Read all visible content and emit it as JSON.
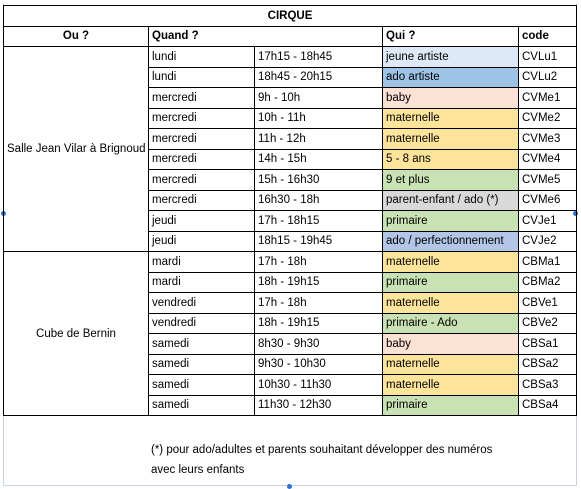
{
  "title": "CIRQUE",
  "headers": {
    "where": "Ou ?",
    "when": "Quand ?",
    "who": "Qui ?",
    "code": "code"
  },
  "colors": {
    "jeune_artiste": "#dde9f6",
    "ado_artiste": "#9dc3e6",
    "baby": "#fbe2d5",
    "maternelle": "#fde49b",
    "enfants": "#c9e2b3",
    "parent_enfant": "#d9d9d9",
    "ado_perf": "#b4c6e7"
  },
  "groups": [
    {
      "place": "Salle Jean Vilar à Brignoud",
      "rows": [
        {
          "day": "lundi",
          "time": "17h15 - 18h45",
          "who": "jeune artiste",
          "code": "CVLu1",
          "color": "#dde9f6"
        },
        {
          "day": "lundi",
          "time": "18h45 - 20h15",
          "who": "ado artiste",
          "code": "CVLu2",
          "color": "#9dc3e6"
        },
        {
          "day": "mercredi",
          "time": "9h - 10h",
          "who": "baby",
          "code": "CVMe1",
          "color": "#fbe2d5"
        },
        {
          "day": "mercredi",
          "time": "10h - 11h",
          "who": "maternelle",
          "code": "CVMe2",
          "color": "#fde49b"
        },
        {
          "day": "mercredi",
          "time": "11h - 12h",
          "who": "maternelle",
          "code": "CVMe3",
          "color": "#fde49b"
        },
        {
          "day": "mercredi",
          "time": "14h - 15h",
          "who": "5 - 8 ans",
          "code": "CVMe4",
          "color": "#fde49b"
        },
        {
          "day": "mercredi",
          "time": "15h - 16h30",
          "who": "9 et plus",
          "code": "CVMe5",
          "color": "#c9e2b3"
        },
        {
          "day": "mercredi",
          "time": "16h30 - 18h",
          "who": "parent-enfant / ado (*)",
          "code": "CVMe6",
          "color": "#d9d9d9"
        },
        {
          "day": "jeudi",
          "time": "17h - 18h15",
          "who": "primaire",
          "code": "CVJe1",
          "color": "#c9e2b3"
        },
        {
          "day": "jeudi",
          "time": "18h15 - 19h45",
          "who": "ado / perfectionnement",
          "code": "CVJe2",
          "color": "#b4c6e7"
        }
      ]
    },
    {
      "place": "Cube de Bernin",
      "rows": [
        {
          "day": "mardi",
          "time": "17h - 18h",
          "who": "maternelle",
          "code": "CBMa1",
          "color": "#fde49b"
        },
        {
          "day": "mardi",
          "time": "18h - 19h15",
          "who": "primaire",
          "code": "CBMa2",
          "color": "#c9e2b3"
        },
        {
          "day": "vendredi",
          "time": "17h - 18h",
          "who": "maternelle",
          "code": "CBVe1",
          "color": "#fde49b"
        },
        {
          "day": "vendredi",
          "time": "18h - 19h15",
          "who": "primaire - Ado",
          "code": "CBVe2",
          "color": "#c9e2b3"
        },
        {
          "day": "samedi",
          "time": "8h30 - 9h30",
          "who": "baby",
          "code": "CBSa1",
          "color": "#fbe2d5"
        },
        {
          "day": "samedi",
          "time": "9h30 - 10h30",
          "who": "maternelle",
          "code": "CBSa2",
          "color": "#fde49b"
        },
        {
          "day": "samedi",
          "time": "10h30 - 11h30",
          "who": "maternelle",
          "code": "CBSa3",
          "color": "#fde49b"
        },
        {
          "day": "samedi",
          "time": "11h30 - 12h30",
          "who": "primaire",
          "code": "CBSa4",
          "color": "#c9e2b3"
        }
      ]
    }
  ],
  "footnote": {
    "line1": "(*) pour ado/adultes et parents souhaitant développer des numéros",
    "line2": "avec leurs enfants"
  }
}
